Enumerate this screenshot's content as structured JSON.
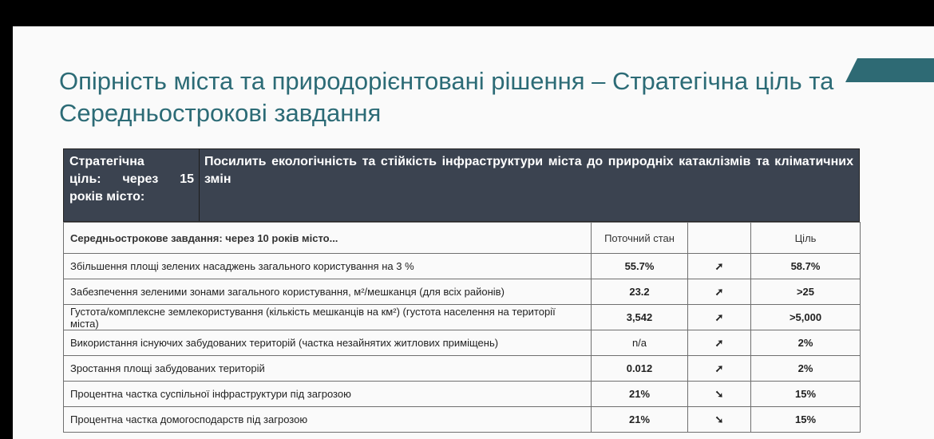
{
  "title": "Опірність міста та природорієнтовані рішення – Стратегічна ціль та Середньострокові завдання",
  "header": {
    "left_line1": "Стратегічна",
    "left_line2a": "ціль:",
    "left_line2b": "через",
    "left_line2c": "15",
    "left_line3": "років місто:",
    "right_text": "Посилить екологічність та стійкість інфраструктури міста до природніх катаклізмів та кліматичних змін"
  },
  "table": {
    "col_task": "Середньострокове завдання: через 10 років місто...",
    "col_current": "Поточний стан",
    "col_trend": "",
    "col_goal": "Ціль",
    "rows": [
      {
        "task": "Збільшення площі зелених насаджень загального користування на 3 %",
        "current": "55.7%",
        "current_color": "green",
        "trend": "➚",
        "goal": "58.7%",
        "goal_color": "green"
      },
      {
        "task": "Забезпечення зеленими зонами загального користування, м²/мешканця (для всіх районів)",
        "current": "23.2",
        "current_color": "green",
        "trend": "➚",
        "goal": ">25",
        "goal_color": "green"
      },
      {
        "task": "Густота/комплексне землекористування (кількість мешканців на км²) (густота населення на території міста)",
        "current": "3,542",
        "current_color": "red",
        "trend": "➚",
        "goal": ">5,000",
        "goal_color": "orange"
      },
      {
        "task": "Використання існуючих забудованих територій (частка незайнятих житлових приміщень)",
        "current": "n/a",
        "current_color": "gray",
        "trend": "➚",
        "goal": "2%",
        "goal_color": "green"
      },
      {
        "task": "Зростання площі забудованих територій",
        "current": "0.012",
        "current_color": "red",
        "trend": "➚",
        "goal": "2%",
        "goal_color": "green"
      },
      {
        "task": "Процентна частка суспільної інфраструктури під загрозою",
        "current": "21%",
        "current_color": "red",
        "trend": "➘",
        "goal": "15%",
        "goal_color": "orange"
      },
      {
        "task": "Процентна частка домогосподарств під загрозою",
        "current": "21%",
        "current_color": "red",
        "trend": "➘",
        "goal": "15%",
        "goal_color": "orange"
      }
    ]
  },
  "colors": {
    "accent": "#2c6b76",
    "header_bg": "#3b4350",
    "green": "#3aa63a",
    "red": "#e02020",
    "orange": "#f0b400"
  }
}
